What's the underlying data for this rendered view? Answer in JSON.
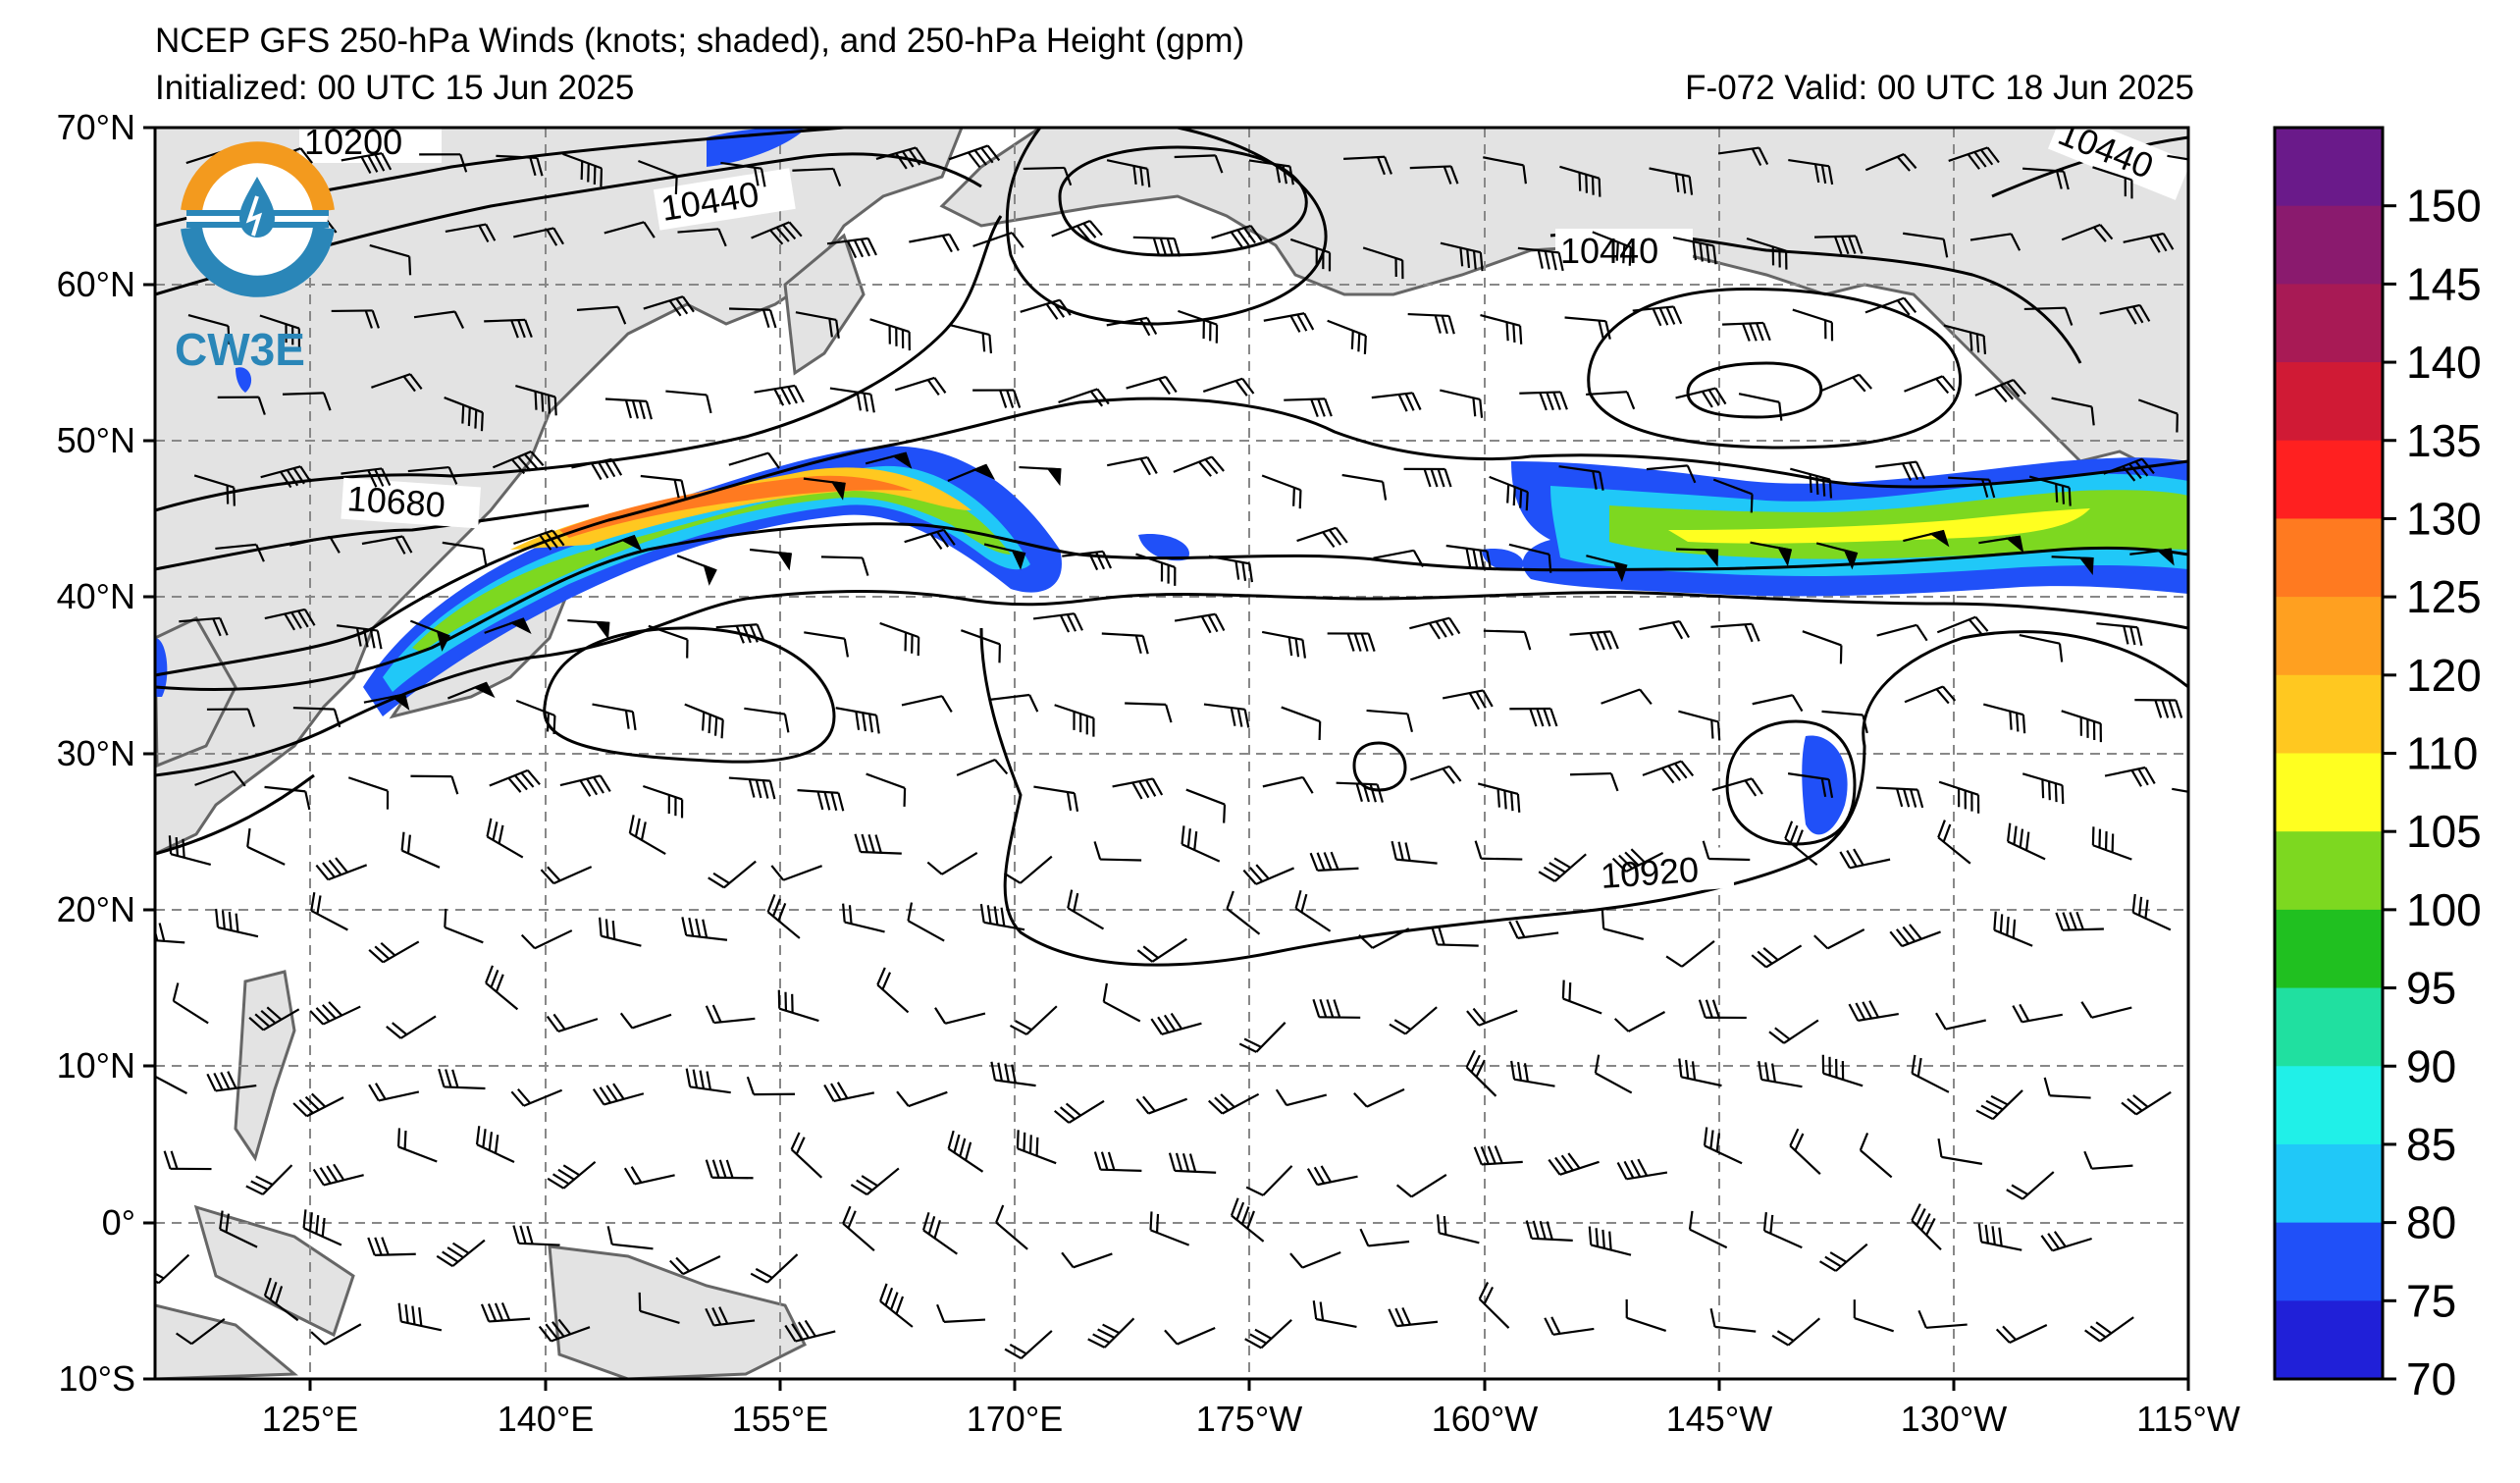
{
  "header": {
    "title": "NCEP GFS 250-hPa Winds (knots; shaded), and 250-hPa Height (gpm)",
    "initialized": "Initialized: 00 UTC 15 Jun 2025",
    "valid": "F-072  Valid: 00 UTC 18 Jun 2025"
  },
  "logo": {
    "text": "CW3E",
    "icon": "cw3e-water-drop-logo-icon"
  },
  "map": {
    "projection": "cylindrical",
    "lon_ticks": [
      "125°E",
      "140°E",
      "155°E",
      "170°E",
      "175°W",
      "160°W",
      "145°W",
      "130°W",
      "115°W"
    ],
    "lat_ticks": [
      "70°N",
      "60°N",
      "50°N",
      "40°N",
      "30°N",
      "20°N",
      "10°N",
      "0°",
      "10°S"
    ],
    "contour_labels": [
      "10200",
      "10440",
      "10440",
      "10440",
      "10680",
      "10920"
    ]
  },
  "colorbar": {
    "labels": [
      "150",
      "145",
      "140",
      "135",
      "130",
      "125",
      "120",
      "110",
      "105",
      "100",
      "95",
      "90",
      "85",
      "80",
      "75",
      "70"
    ],
    "colors": [
      "#6a1a8a",
      "#8a1a6e",
      "#a81a55",
      "#d01a35",
      "#ff2020",
      "#ff7a20",
      "#ffa020",
      "#ffc820",
      "#ffff20",
      "#7dd820",
      "#20c020",
      "#20e0a0",
      "#20f0e8",
      "#20c8f8",
      "#2050f8",
      "#2020d8"
    ]
  }
}
